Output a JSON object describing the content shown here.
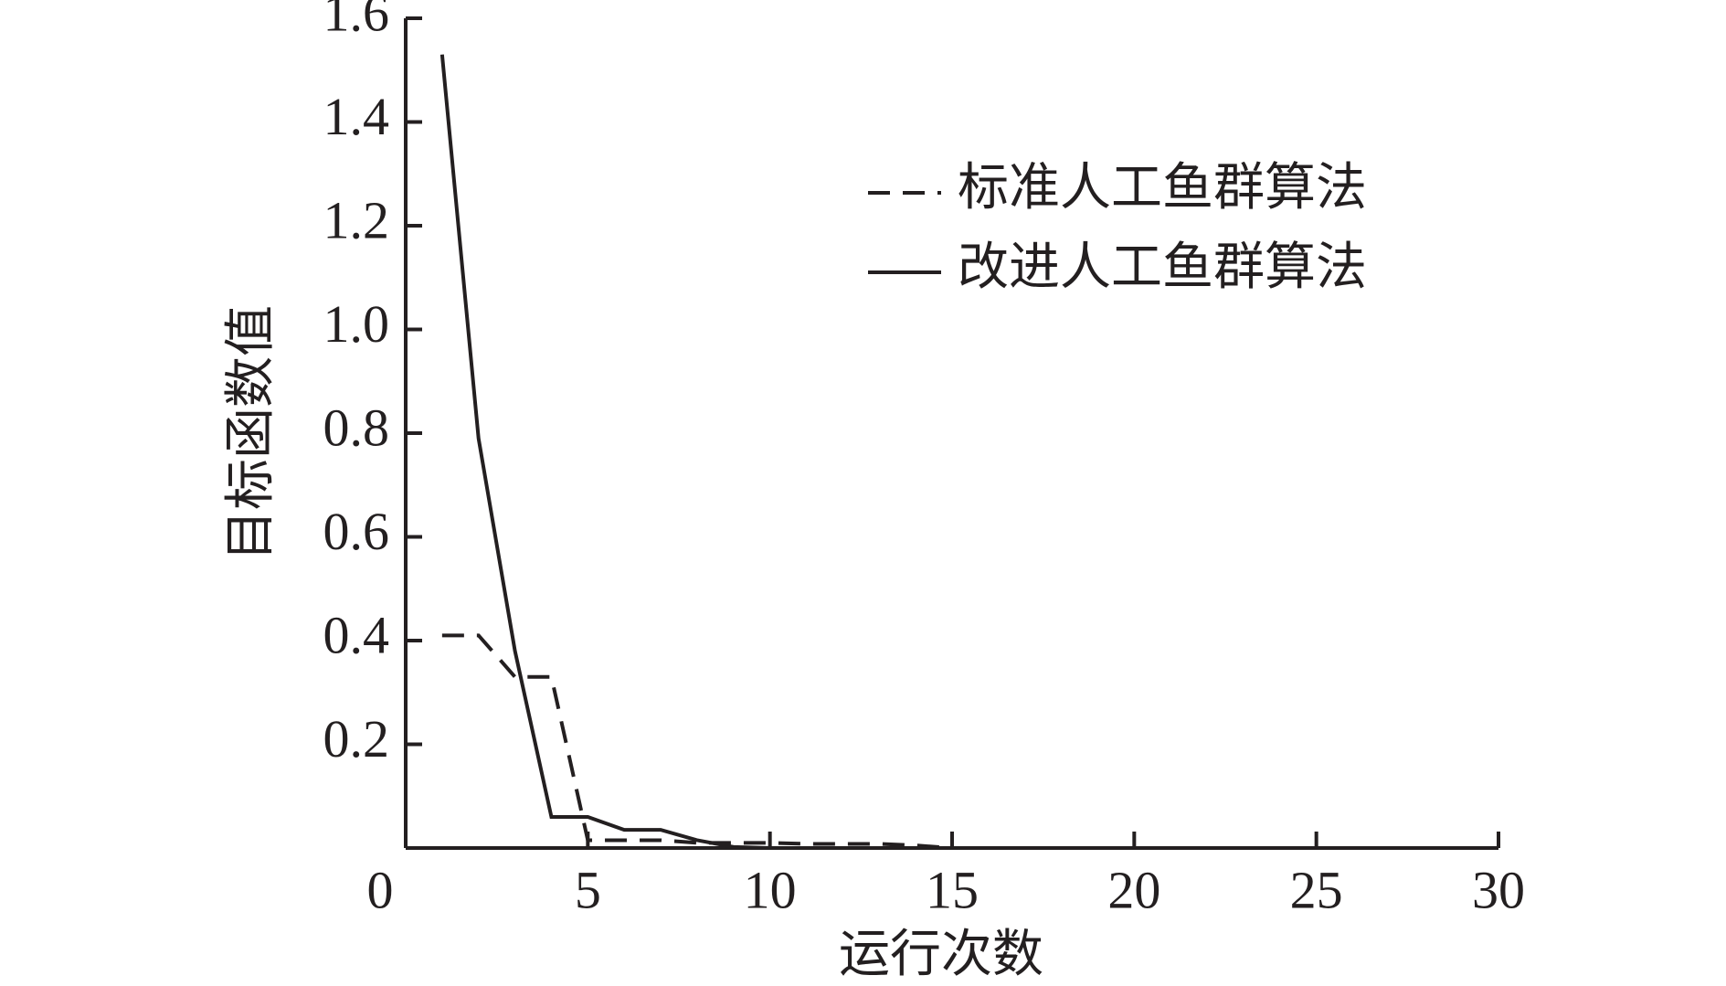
{
  "chart_data": {
    "type": "line",
    "x_label": "运行次数",
    "y_label": "目标函数值",
    "x": [
      1,
      2,
      3,
      4,
      5,
      6,
      7,
      8,
      9,
      10,
      11,
      12,
      13,
      14,
      15,
      16,
      17,
      18,
      19,
      20,
      21,
      22,
      23,
      24,
      25,
      26,
      27,
      28,
      29,
      30
    ],
    "series": [
      {
        "name": "标准人工鱼群算法",
        "color": "#231f20",
        "dash": true,
        "values": [
          0.41,
          0.41,
          0.33,
          0.33,
          0.015,
          0.015,
          0.015,
          0.01,
          0.01,
          0.01,
          0.008,
          0.008,
          0.008,
          0.005,
          0,
          0,
          0,
          0,
          0,
          0,
          0,
          0,
          0,
          0,
          0,
          0,
          0,
          0,
          0,
          0
        ]
      },
      {
        "name": "改进人工鱼群算法",
        "color": "#231f20",
        "dash": false,
        "values": [
          1.53,
          0.79,
          0.38,
          0.06,
          0.06,
          0.035,
          0.035,
          0.015,
          0.002,
          0,
          0,
          0,
          0,
          0,
          0,
          0,
          0,
          0,
          0,
          0,
          0,
          0,
          0,
          0,
          0,
          0,
          0,
          0,
          0,
          0
        ]
      }
    ],
    "xlim": [
      0,
      30
    ],
    "xticks": [
      0,
      5,
      10,
      15,
      20,
      25,
      30
    ],
    "ylim": [
      0,
      1.6
    ],
    "yticks": [
      0.2,
      0.4,
      0.6,
      0.8,
      {
        "value": 1.0,
        "label": "1.0"
      },
      1.2,
      1.4,
      1.6
    ],
    "legend": "upper right"
  }
}
